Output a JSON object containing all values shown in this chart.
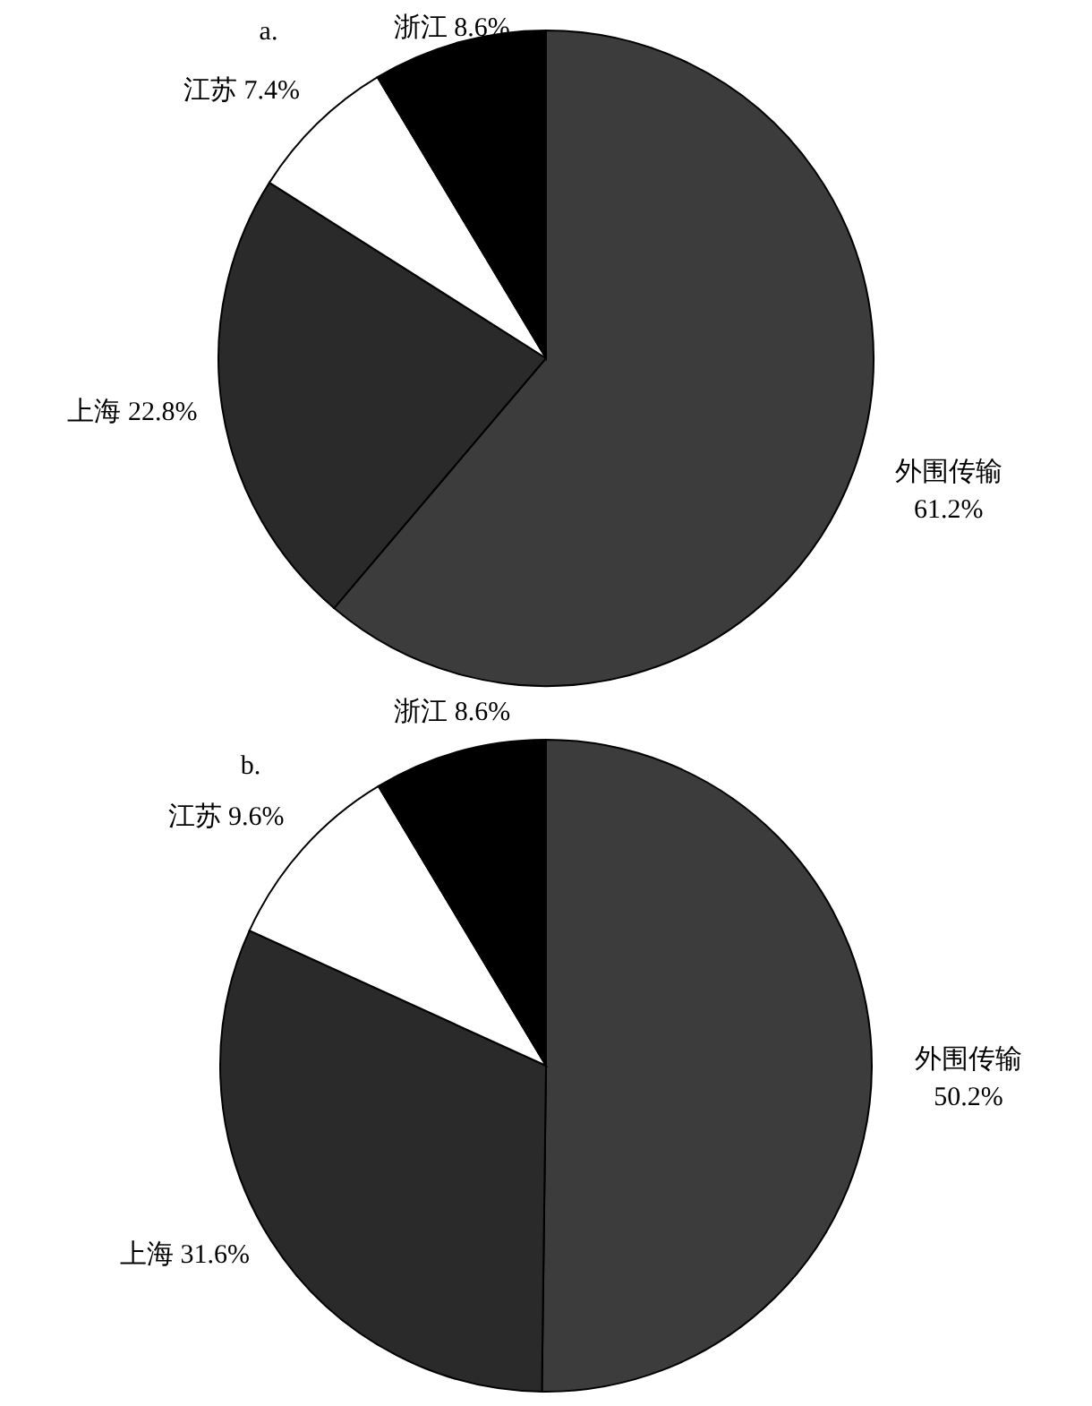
{
  "chart_data": [
    {
      "type": "pie",
      "title": "a.",
      "categories": [
        "外围传输",
        "上海",
        "江苏",
        "浙江"
      ],
      "values": [
        61.2,
        22.8,
        7.4,
        8.6
      ],
      "colors": [
        "#3c3c3c",
        "#2a2a2a",
        "#ffffff",
        "#000000"
      ],
      "value_labels": [
        "61.2%",
        "22.8%",
        "7.4%",
        "8.6%"
      ]
    },
    {
      "type": "pie",
      "title": "b.",
      "categories": [
        "外围传输",
        "上海",
        "江苏",
        "浙江"
      ],
      "values": [
        50.2,
        31.6,
        9.6,
        8.6
      ],
      "colors": [
        "#3c3c3c",
        "#2a2a2a",
        "#ffffff",
        "#000000"
      ],
      "value_labels": [
        "50.2%",
        "31.6%",
        "9.6%",
        "8.6%"
      ]
    }
  ]
}
